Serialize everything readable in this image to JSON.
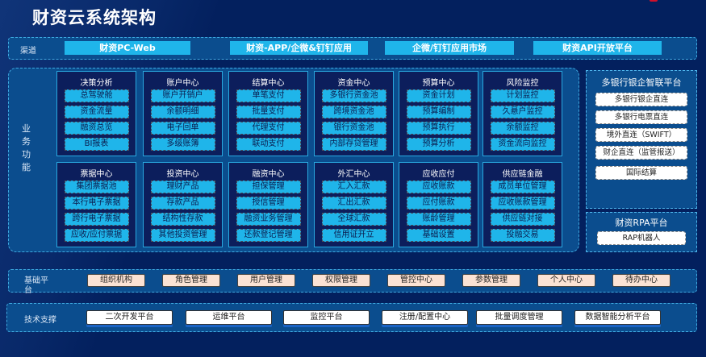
{
  "title": "财资云系统架构",
  "channel": {
    "label": "渠道",
    "items": [
      "财资PC-Web",
      "财资-APP/企微&钉钉应用",
      "企微/钉钉应用市场",
      "财资API开放平台"
    ]
  },
  "business": {
    "label": "业务功能",
    "modules": [
      {
        "title": "决策分析",
        "items": [
          "总驾驶舱",
          "资金流量",
          "融资总览",
          "BI报表"
        ]
      },
      {
        "title": "账户中心",
        "items": [
          "账户开销户",
          "余额明细",
          "电子回单",
          "多级账簿"
        ]
      },
      {
        "title": "结算中心",
        "items": [
          "单笔支付",
          "批量支付",
          "代理支付",
          "联动支付"
        ]
      },
      {
        "title": "资金中心",
        "items": [
          "多银行资金池",
          "跨境资金池",
          "银行资金池",
          "内部存贷管理"
        ]
      },
      {
        "title": "预算中心",
        "items": [
          "资金计划",
          "预算编制",
          "预算执行",
          "预算分析"
        ]
      },
      {
        "title": "风险监控",
        "items": [
          "计划监控",
          "久悬户监控",
          "余额监控",
          "资金流向监控"
        ]
      },
      {
        "title": "票据中心",
        "items": [
          "集团票据池",
          "本行电子票据",
          "跨行电子票据",
          "应收/应付票据"
        ]
      },
      {
        "title": "投资中心",
        "items": [
          "理财产品",
          "存款产品",
          "结构性存款",
          "其他投资管理"
        ]
      },
      {
        "title": "融资中心",
        "items": [
          "担保管理",
          "授信管理",
          "融资业务管理",
          "还款登记管理"
        ]
      },
      {
        "title": "外汇中心",
        "items": [
          "汇入汇款",
          "汇出汇款",
          "全球汇款",
          "信用证开立"
        ]
      },
      {
        "title": "应收应付",
        "items": [
          "应收账款",
          "应付账款",
          "账龄管理",
          "基础设置"
        ]
      },
      {
        "title": "供应链金融",
        "items": [
          "成员单位管理",
          "应收账款管理",
          "供应链对接",
          "投融交易"
        ]
      }
    ]
  },
  "bank_platform": {
    "title": "多银行银企智联平台",
    "items": [
      "多银行银企直连",
      "多银行电票直连",
      "境外直连（SWIFT）",
      "财企直连（监管报送）",
      "国际结算"
    ]
  },
  "rpa_platform": {
    "title": "财资RPA平台",
    "items": [
      "RAP机器人"
    ]
  },
  "base": {
    "label": "基础平台",
    "items": [
      "组织机构",
      "角色管理",
      "用户管理",
      "权限管理",
      "管控中心",
      "参数管理",
      "个人中心",
      "待办中心"
    ]
  },
  "tech": {
    "label": "技术支撑",
    "items": [
      "二次开发平台",
      "运维平台",
      "监控平台",
      "注册/配置中心",
      "批量调度管理",
      "数据智能分析平台"
    ]
  },
  "colors": {
    "background": "#03205e",
    "channel_button": "#1fb5ea",
    "base_button": "#fbe2d4",
    "logo": "#d0102a"
  }
}
